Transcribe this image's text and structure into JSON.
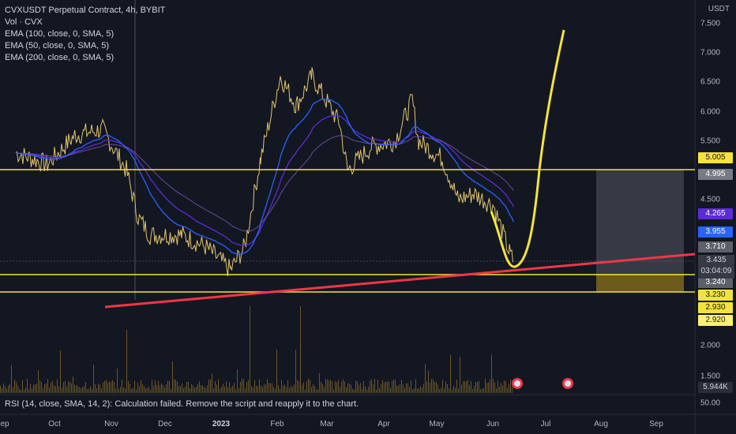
{
  "header": {
    "symbol_line": "CVXUSDT Perpetual Contract, 4h, BYBIT",
    "indicators": [
      "Vol · CVX",
      "EMA (100, close, 0, SMA, 5)",
      "EMA (50, close, 0, SMA, 5)",
      "EMA (200, close, 0, SMA, 5)"
    ]
  },
  "rsi_message": "RSI (14, close, SMA, 14, 2): Calculation failed. Remove the script and reapply it to the chart.",
  "chart_data": {
    "type": "line",
    "title": "CVXUSDT Perpetual Contract, 4h, BYBIT",
    "currency_label": "USDT",
    "ylim": [
      2.8,
      7.6
    ],
    "y_ticks": [
      "7.500",
      "7.000",
      "6.500",
      "6.000",
      "5.500",
      "4.500"
    ],
    "x_ticks": [
      "ep",
      "Oct",
      "Nov",
      "Dec",
      "2023",
      "Feb",
      "Mar",
      "Apr",
      "May",
      "Jun",
      "Jul",
      "Aug",
      "Sep"
    ],
    "price_series_monthly": [
      {
        "x": "Sep",
        "y": 5.1
      },
      {
        "x": "Oct",
        "y": 5.5
      },
      {
        "x": "Nov",
        "y": 4.6
      },
      {
        "x": "Dec",
        "y": 3.5
      },
      {
        "x": "2023",
        "y": 4.6
      },
      {
        "x": "Feb",
        "y": 6.7
      },
      {
        "x": "Mar",
        "y": 5.9
      },
      {
        "x": "Apr",
        "y": 5.5
      },
      {
        "x": "May",
        "y": 4.7
      },
      {
        "x": "Jun",
        "y": 3.45
      }
    ],
    "horizontal_levels": [
      4.995,
      3.24,
      3.23
    ],
    "axis_tags": [
      {
        "label": "5.005",
        "value": 5.005,
        "bg": "#f5e33b",
        "fg": "#131722"
      },
      {
        "label": "4.995",
        "value": 4.995,
        "bg": "#787b86",
        "fg": "#ffffff"
      },
      {
        "label": "4.265",
        "value": 4.265,
        "bg": "#5b2bd8",
        "fg": "#ffffff"
      },
      {
        "label": "3.955",
        "value": 3.955,
        "bg": "#2962ff",
        "fg": "#ffffff"
      },
      {
        "label": "3.710",
        "value": 3.71,
        "bg": "#5d606b",
        "fg": "#ffffff"
      },
      {
        "label": "3.240",
        "value": 3.24,
        "bg": "#5d606b",
        "fg": "#ffffff"
      },
      {
        "label": "3.230",
        "value": 3.23,
        "bg": "#f5e33b",
        "fg": "#131722"
      },
      {
        "label": "2.930",
        "value": 2.93,
        "bg": "#f5e33b",
        "fg": "#131722"
      },
      {
        "label": "2.920",
        "value": 2.92,
        "bg": "#fff176",
        "fg": "#131722"
      }
    ],
    "current_price": {
      "price": "3.435",
      "countdown": "03:04:09"
    },
    "volume_ticks": [
      "2.000",
      "1.500"
    ],
    "volume_tag": "5.944K",
    "rsi_tick": "50.00",
    "colors": {
      "price": "#e0c46c",
      "ema50": "#2962ff",
      "ema100": "#5b2bd8",
      "levels": "#f5e33b",
      "trendline": "#f23645",
      "projection": "#f5e33b"
    }
  }
}
